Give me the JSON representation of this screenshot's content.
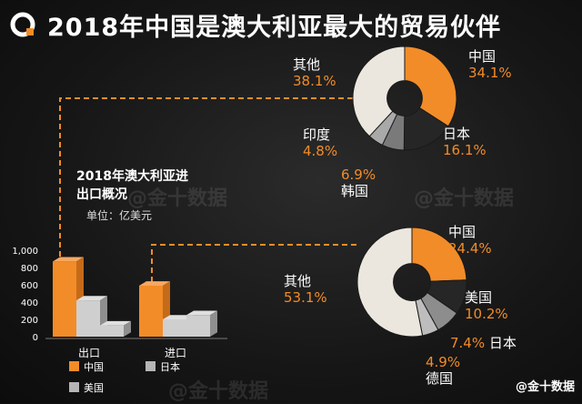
{
  "title": "2018年中国是澳大利亚最大的贸易伙伴",
  "subtitle": "2018年澳大利亚进出口概况",
  "unit_label": "单位：亿美元",
  "watermark": "@金十数据",
  "brand": "@金十数据",
  "colors": {
    "accent": "#f28c28",
    "grey_light": "#cfcfcf",
    "grey_mid": "#a9a9a9",
    "grey_dark": "#7a7a7a"
  },
  "chart_data": [
    {
      "type": "pie",
      "slices": [
        {
          "name": "中国",
          "value": 34.1,
          "label": "34.1%"
        },
        {
          "name": "日本",
          "value": 16.1,
          "label": "16.1%"
        },
        {
          "name": "韩国",
          "value": 6.9,
          "label": "6.9%"
        },
        {
          "name": "印度",
          "value": 4.8,
          "label": "4.8%"
        },
        {
          "name": "其他",
          "value": 38.1,
          "label": "38.1%"
        }
      ]
    },
    {
      "type": "pie",
      "slices": [
        {
          "name": "中国",
          "value": 24.4,
          "label": "24.4%"
        },
        {
          "name": "美国",
          "value": 10.2,
          "label": "10.2%"
        },
        {
          "name": "日本",
          "value": 7.4,
          "label": "7.4%"
        },
        {
          "name": "德国",
          "value": 4.9,
          "label": "4.9%"
        },
        {
          "name": "其他",
          "value": 53.1,
          "label": "53.1%"
        }
      ]
    },
    {
      "type": "bar",
      "categories": [
        "出口",
        "进口"
      ],
      "series": [
        {
          "name": "中国",
          "values": [
            870,
            590
          ]
        },
        {
          "name": "日本",
          "values": [
            420,
            200
          ]
        },
        {
          "name": "美国",
          "values": [
            130,
            250
          ]
        }
      ],
      "ylim": [
        0,
        1000
      ],
      "yticks": [
        "0",
        "200",
        "400",
        "600",
        "800",
        "1,000"
      ],
      "legend": "bottom"
    }
  ]
}
